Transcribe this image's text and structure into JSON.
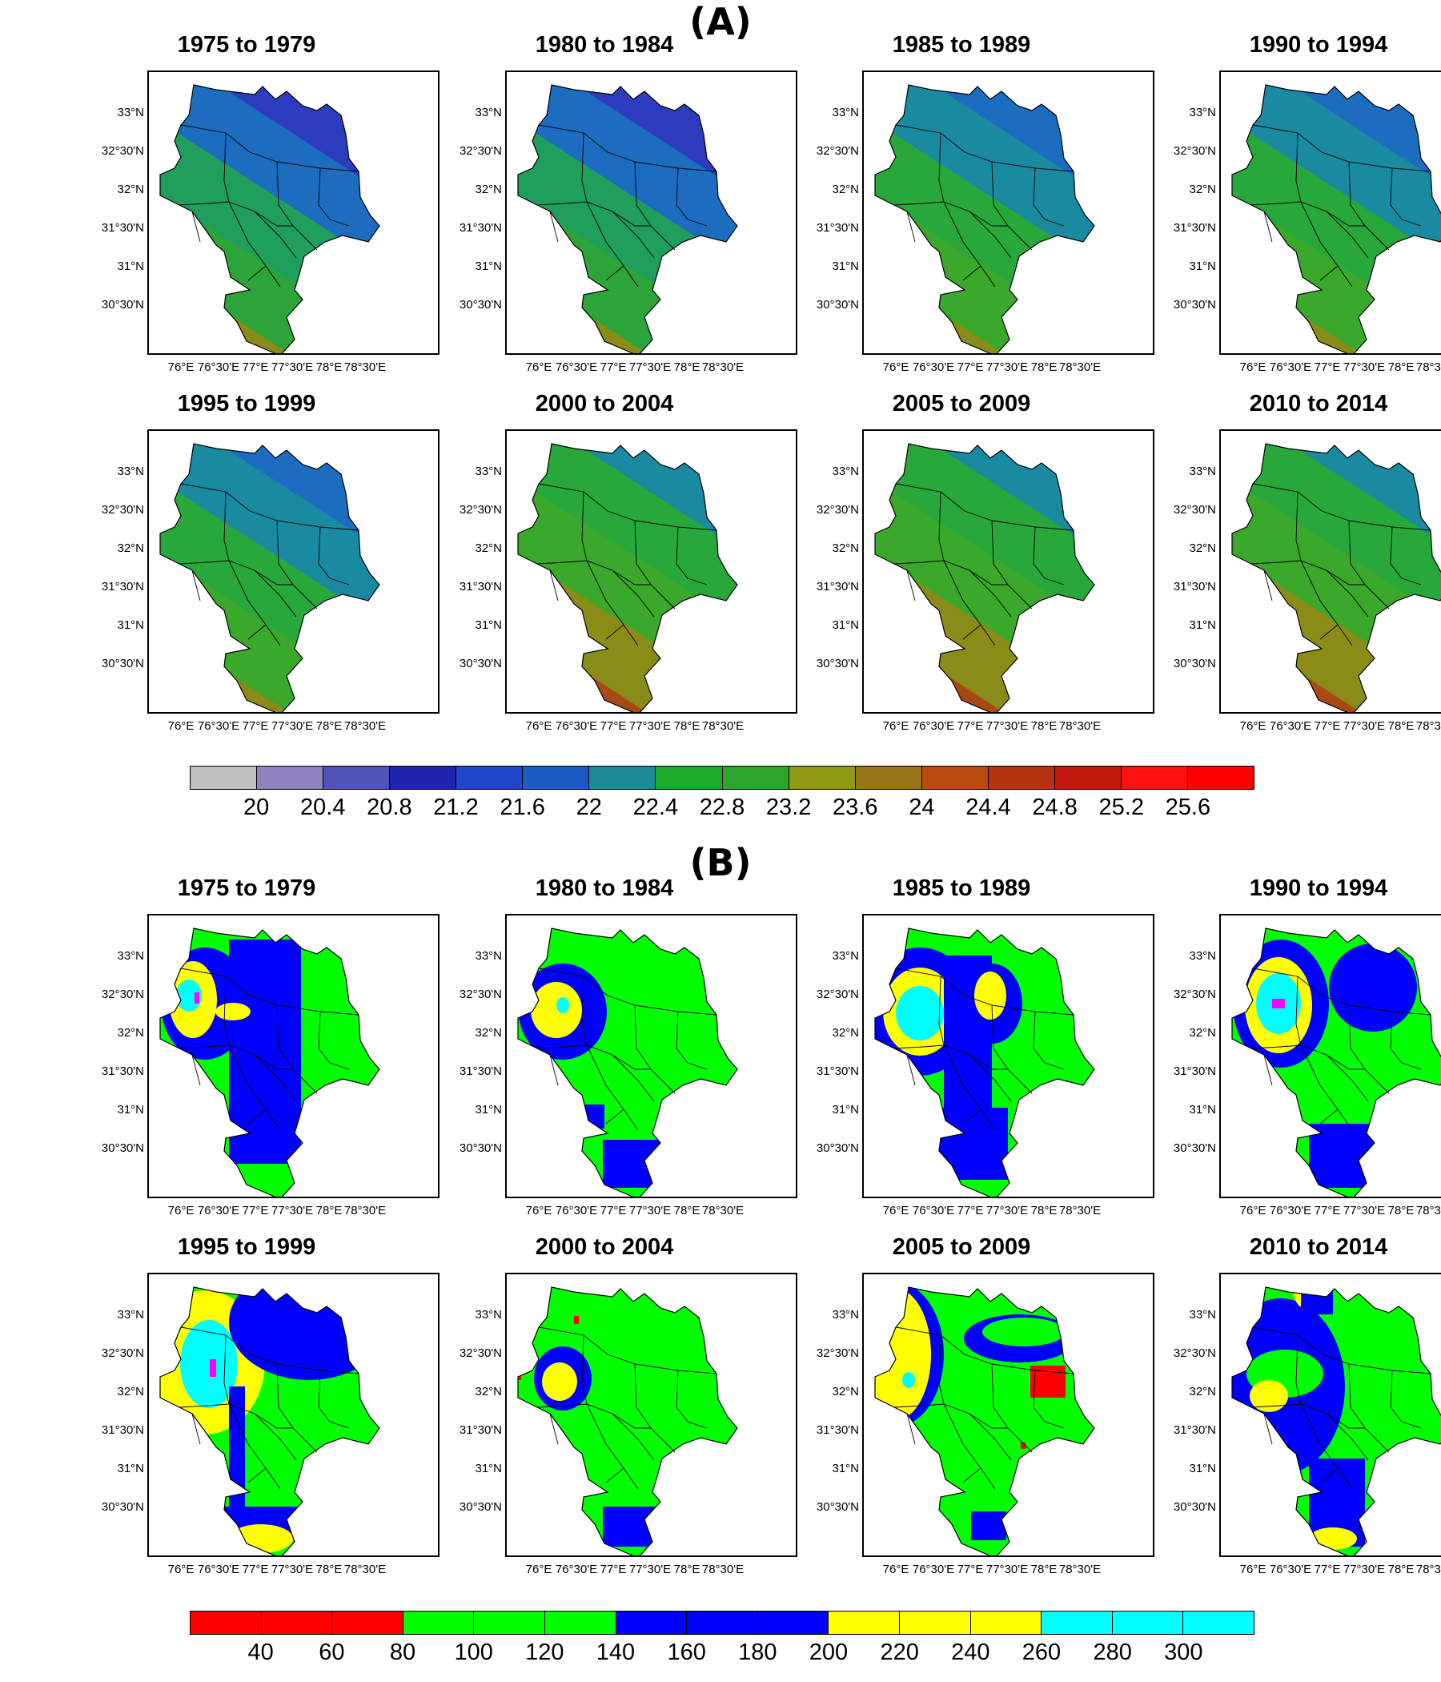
{
  "figure": {
    "section_a": {
      "label": "(A)",
      "panels": [
        "1975 to 1979",
        "1980 to 1984",
        "1985 to 1989",
        "1990 to 1994",
        "1995 to 1999",
        "2000 to 2004",
        "2005 to 2009",
        "2010 to 2014"
      ],
      "colorbar_colors": [
        "#c0c0c0",
        "#8f83c0",
        "#5054b8",
        "#2222b0",
        "#1f46c8",
        "#1a5cc4",
        "#1f8a95",
        "#1caa2c",
        "#2ca62a",
        "#8f9a12",
        "#9a7418",
        "#b84c10",
        "#b43410",
        "#c0180c",
        "#ff1010",
        "#ff0000"
      ],
      "colorbar_ticks": [
        "20",
        "20.4",
        "20.8",
        "21.2",
        "21.6",
        "22",
        "22.4",
        "22.8",
        "23.2",
        "23.6",
        "24",
        "24.4",
        "24.8",
        "25.2",
        "25.6"
      ],
      "palette_by_period": [
        [
          "#7f78b8",
          "#2328a8",
          "#2c3cbd",
          "#1c6cc0",
          "#1f9e5c",
          "#2ca43a",
          "#8a8c18",
          "#a25a16",
          "#b83a10"
        ],
        [
          "#7f78b8",
          "#2328a8",
          "#2c3cbd",
          "#1c6cc0",
          "#1f9e5c",
          "#2ca43a",
          "#8a8c18",
          "#a25a16",
          "#b83a10"
        ],
        [
          "#4a4bb4",
          "#2328a8",
          "#1c6cc0",
          "#1a8aa0",
          "#28a83a",
          "#3aa82a",
          "#8a8c18",
          "#a84812",
          "#c02c10"
        ],
        [
          "#7f78b8",
          "#2328a8",
          "#1c6cc0",
          "#1a8aa0",
          "#28a83a",
          "#3aa82a",
          "#8a8c18",
          "#a84812",
          "#c02c10"
        ],
        [
          "#6f6cb8",
          "#2328a8",
          "#1c6cc0",
          "#1a8aa0",
          "#28a83a",
          "#3aa82a",
          "#8a8c18",
          "#b04012",
          "#c8280e"
        ],
        [
          "#2b44bb",
          "#1c6cc0",
          "#1a8aa0",
          "#28a83a",
          "#3aa82a",
          "#8a8c18",
          "#a84812",
          "#c02c10",
          "#e81010"
        ],
        [
          "#2b44bb",
          "#1c6cc0",
          "#1a8aa0",
          "#28a83a",
          "#3aa82a",
          "#8a8c18",
          "#a84812",
          "#c02c10",
          "#e81010"
        ],
        [
          "#2b44bb",
          "#1c6cc0",
          "#1a8aa0",
          "#28a83a",
          "#3aa82a",
          "#8a8c18",
          "#a84812",
          "#c02c10",
          "#f01010"
        ]
      ]
    },
    "section_b": {
      "label": "(B)",
      "panels": [
        "1975 to 1979",
        "1980 to 1984",
        "1985 to 1989",
        "1990 to 1994",
        "1995 to 1999",
        "2000 to 2004",
        "2005 to 2009",
        "2010 to 2014"
      ],
      "colorbar_colors": [
        "#ff0000",
        "#ff0000",
        "#ff0000",
        "#00ff00",
        "#00ff00",
        "#00ff00",
        "#0000ff",
        "#0000ff",
        "#0000ff",
        "#ffff00",
        "#ffff00",
        "#ffff00",
        "#00ffff",
        "#00ffff",
        "#00ffff",
        "#ff00ff",
        "#ff00ff",
        "#ff00ff"
      ],
      "colorbar_ticks": [
        "40",
        "60",
        "80",
        "100",
        "120",
        "140",
        "160",
        "180",
        "200",
        "220",
        "240",
        "260",
        "280",
        "300"
      ]
    },
    "axes": {
      "y_ticks": [
        "33°N",
        "32°30'N",
        "32°N",
        "31°30'N",
        "31°N",
        "30°30'N"
      ],
      "x_ticks": [
        "76°E",
        "76°30'E",
        "77°E",
        "77°30'E",
        "78°E",
        "78°30'E"
      ]
    }
  }
}
